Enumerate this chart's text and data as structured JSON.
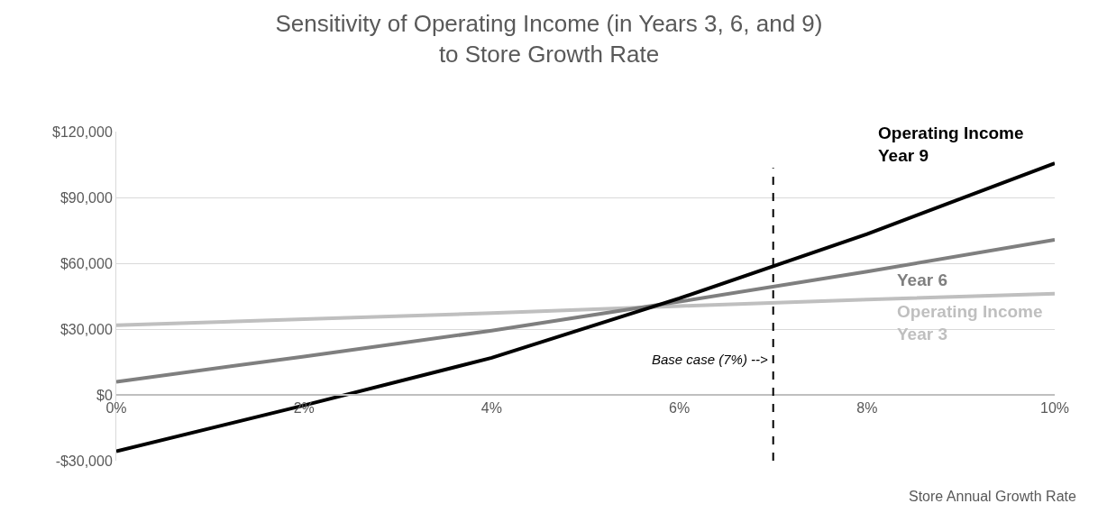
{
  "chart_data": {
    "type": "line",
    "title": "Sensitivity of Operating Income (in Years 3, 6, and 9)\nto Store Growth Rate",
    "xlabel": "Store Annual Growth Rate",
    "x": [
      0,
      2,
      4,
      6,
      8,
      10
    ],
    "series": [
      {
        "name": "Operating Income\nYear 3",
        "color": "#bfbfbf",
        "values": [
          31700,
          34500,
          37300,
          40500,
          43500,
          46100
        ]
      },
      {
        "name": "Year 6",
        "color": "#7f7f7f",
        "values": [
          6000,
          17500,
          29300,
          42500,
          56200,
          70700
        ]
      },
      {
        "name": "Operating Income\nYear 9",
        "color": "#000000",
        "values": [
          -25700,
          -4800,
          16900,
          44000,
          73300,
          105600
        ]
      }
    ],
    "xlim": [
      0,
      10
    ],
    "xticks": [
      {
        "value": 0,
        "label": "0%"
      },
      {
        "value": 2,
        "label": "2%"
      },
      {
        "value": 4,
        "label": "4%"
      },
      {
        "value": 6,
        "label": "6%"
      },
      {
        "value": 8,
        "label": "8%"
      },
      {
        "value": 10,
        "label": "10%"
      }
    ],
    "ylim": [
      -30000,
      120000
    ],
    "yticks": [
      {
        "value": -30000,
        "label": "-$30,000"
      },
      {
        "value": 0,
        "label": "$0"
      },
      {
        "value": 30000,
        "label": "$30,000"
      },
      {
        "value": 60000,
        "label": "$60,000"
      },
      {
        "value": 90000,
        "label": "$90,000"
      },
      {
        "value": 120000,
        "label": "$120,000"
      }
    ],
    "ref_lines": [
      {
        "axis": "x",
        "value": 7,
        "label": "Base case (7%) -->",
        "color": "#000000",
        "line_style": "dashed"
      }
    ],
    "grid": "y",
    "legend": false,
    "marker": "none",
    "line_style": "solid"
  }
}
